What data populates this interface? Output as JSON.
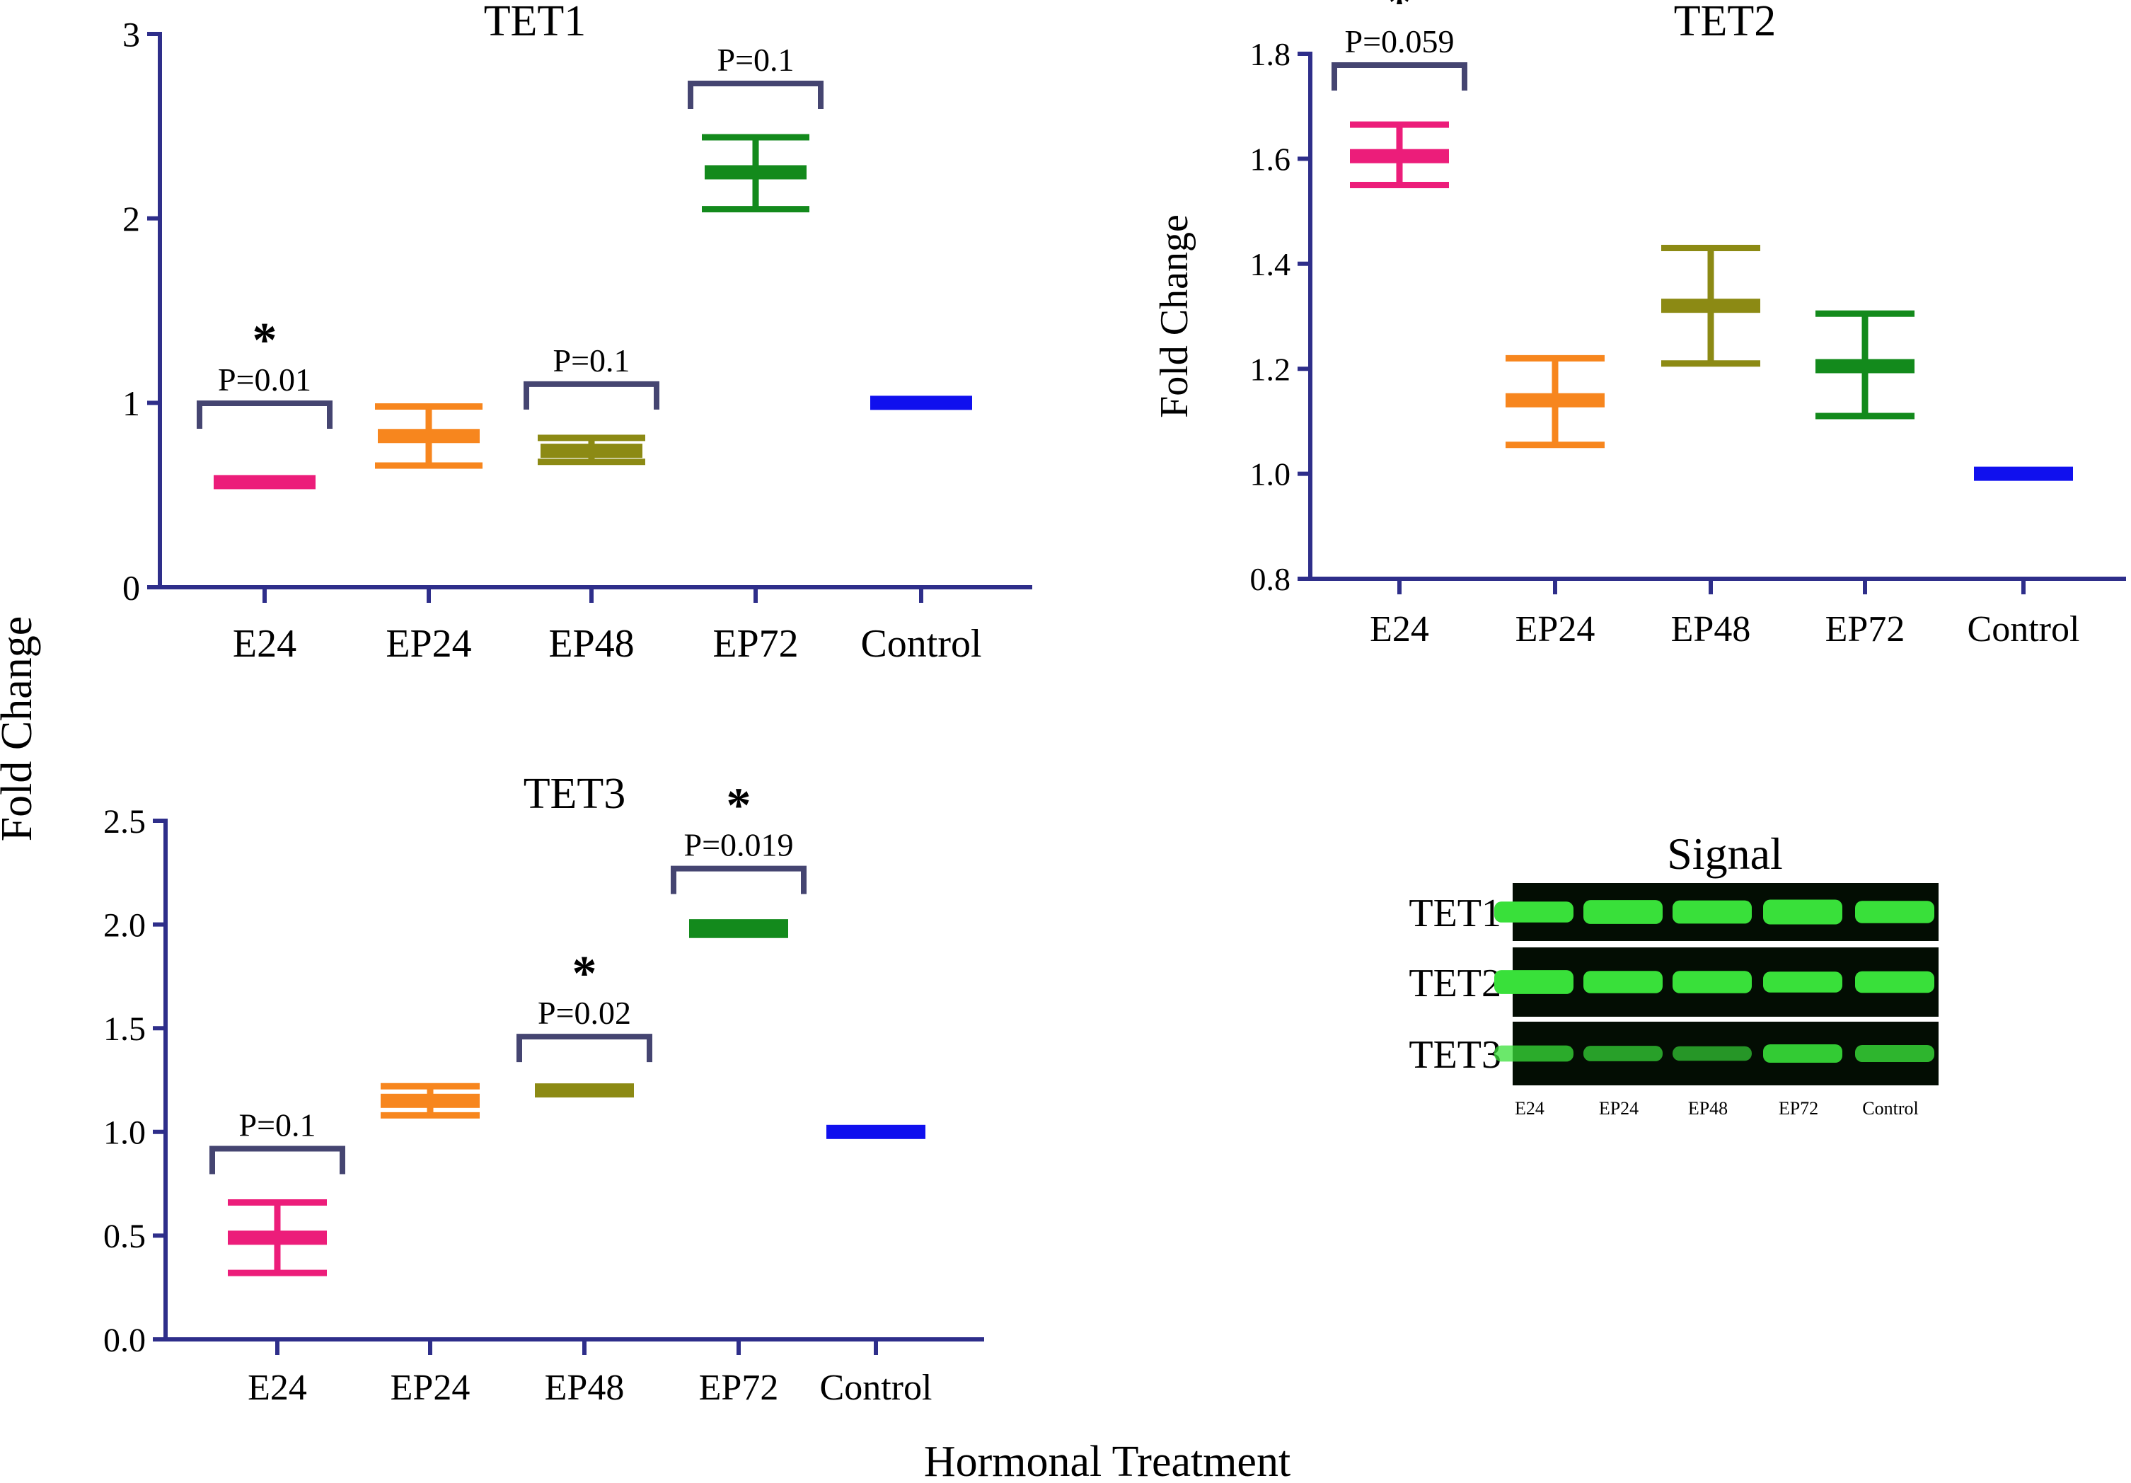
{
  "colors": {
    "E24": "#ec1d7a",
    "EP24": "#f7861e",
    "EP48": "#8c8a14",
    "EP72": "#138a1c",
    "Control": "#1010ee",
    "axis": "#2e2e8a",
    "bracket": "#454571",
    "band": "#39e03a",
    "blot_bg": "#030d03"
  },
  "figure": {
    "shared_ylabel": "Fold Change",
    "shared_xlabel": "Hormonal Treatment"
  },
  "chart_data": [
    {
      "type": "scatter",
      "title": "TET1",
      "xlabel": "",
      "ylabel": "",
      "ylim": [
        0,
        3
      ],
      "yticks": [
        "0",
        "1",
        "2",
        "3"
      ],
      "grid": false,
      "legend": "none",
      "categories": [
        "E24",
        "EP24",
        "EP48",
        "EP72",
        "Control"
      ],
      "mean": [
        0.57,
        0.82,
        0.74,
        2.25,
        1.0
      ],
      "err_low": [
        0.57,
        0.66,
        0.68,
        2.05,
        1.0
      ],
      "err_high": [
        0.57,
        0.98,
        0.81,
        2.44,
        1.0
      ],
      "annotations": [
        {
          "category": "E24",
          "text": "P=0.01",
          "star": "*"
        },
        {
          "category": "EP48",
          "text": "P=0.1",
          "star": ""
        },
        {
          "category": "EP72",
          "text": "P=0.1",
          "star": ""
        }
      ]
    },
    {
      "type": "scatter",
      "title": "TET2",
      "xlabel": "",
      "ylabel": "Fold Change",
      "ylim": [
        0.8,
        1.8
      ],
      "yticks": [
        "0.8",
        "1.0",
        "1.2",
        "1.4",
        "1.6",
        "1.8"
      ],
      "grid": false,
      "legend": "none",
      "categories": [
        "E24",
        "EP24",
        "EP48",
        "EP72",
        "Control"
      ],
      "mean": [
        1.605,
        1.14,
        1.32,
        1.205,
        1.0
      ],
      "err_low": [
        1.55,
        1.055,
        1.21,
        1.11,
        1.0
      ],
      "err_high": [
        1.665,
        1.22,
        1.43,
        1.305,
        1.0
      ],
      "annotations": [
        {
          "category": "E24",
          "text": "P=0.059",
          "star": "*"
        }
      ]
    },
    {
      "type": "scatter",
      "title": "TET3",
      "xlabel": "",
      "ylabel": "",
      "ylim": [
        0,
        2.5
      ],
      "yticks": [
        "0.0",
        "0.5",
        "1.0",
        "1.5",
        "2.0",
        "2.5"
      ],
      "grid": false,
      "legend": "none",
      "categories": [
        "E24",
        "EP24",
        "EP48",
        "EP72",
        "Control"
      ],
      "mean": [
        0.49,
        1.15,
        1.2,
        1.98,
        1.0
      ],
      "err_low": [
        0.32,
        1.08,
        1.2,
        1.95,
        1.0
      ],
      "err_high": [
        0.66,
        1.22,
        1.2,
        2.01,
        1.0
      ],
      "annotations": [
        {
          "category": "E24",
          "text": "P=0.1",
          "star": ""
        },
        {
          "category": "EP48",
          "text": "P=0.02",
          "star": "*"
        },
        {
          "category": "EP72",
          "text": "P=0.019",
          "star": "*"
        }
      ]
    }
  ],
  "blot": {
    "title": "Signal",
    "rows": [
      {
        "label": "TET1",
        "intensity": [
          0.7,
          0.9,
          0.85,
          0.95,
          0.8
        ]
      },
      {
        "label": "TET2",
        "intensity": [
          0.9,
          0.8,
          0.8,
          0.7,
          0.75
        ]
      },
      {
        "label": "TET3",
        "intensity": [
          0.4,
          0.35,
          0.3,
          0.55,
          0.45
        ]
      }
    ],
    "lanes": [
      "E24",
      "EP24",
      "EP48",
      "EP72",
      "Control"
    ]
  }
}
